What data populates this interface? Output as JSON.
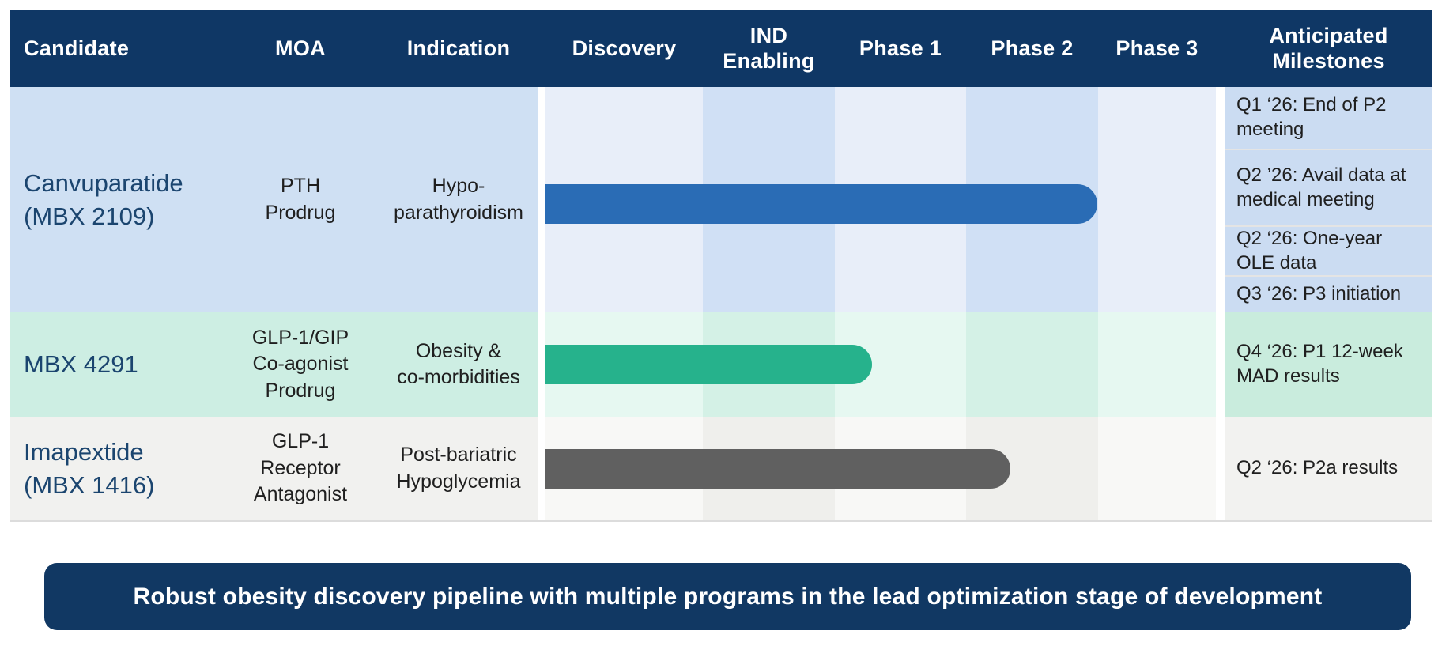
{
  "header": {
    "columns": [
      "Candidate",
      "MOA",
      "Indication",
      "Discovery",
      "IND Enabling",
      "Phase 1",
      "Phase 2",
      "Phase 3",
      "Anticipated Milestones"
    ]
  },
  "rows": [
    {
      "candidate": "Canvuparatide\n(MBX 2109)",
      "moa": "PTH\nProdrug",
      "indication": "Hypo-\nparathyroidism",
      "bar_color": "#2a6cb5",
      "bar_extent": "Discovery through end of Phase 2",
      "milestones": [
        "Q1 ‘26: End of P2 meeting",
        "Q2 ’26: Avail data at medical meeting",
        "Q2 ‘26: One-year OLE data",
        "Q3 ‘26: P3 initiation"
      ]
    },
    {
      "candidate": "MBX 4291",
      "moa": "GLP-1/GIP\nCo-agonist\nProdrug",
      "indication": "Obesity &\nco-morbidities",
      "bar_color": "#26b28c",
      "bar_extent": "Discovery into Phase 1",
      "milestones": [
        "Q4 ‘26: P1 12-week MAD results"
      ]
    },
    {
      "candidate": "Imapextide\n(MBX 1416)",
      "moa": "GLP-1\nReceptor\nAntagonist",
      "indication": "Post-bariatric\nHypoglycemia",
      "bar_color": "#606060",
      "bar_extent": "Discovery into Phase 2",
      "milestones": [
        "Q2 ‘26: P2a results"
      ]
    }
  ],
  "banner": {
    "text": "Robust obesity discovery pipeline with multiple programs in the lead optimization stage of development"
  },
  "colors": {
    "header_navy": "#0f3765",
    "banner_navy": "#113863",
    "candidate_text": "#1b456f",
    "row1_tint": "#cfe0f3",
    "row2_tint": "#cdeee3",
    "row3_tint": "#f1f1ef",
    "bar_blue": "#2a6cb5",
    "bar_green": "#26b28c",
    "bar_gray": "#606060"
  }
}
